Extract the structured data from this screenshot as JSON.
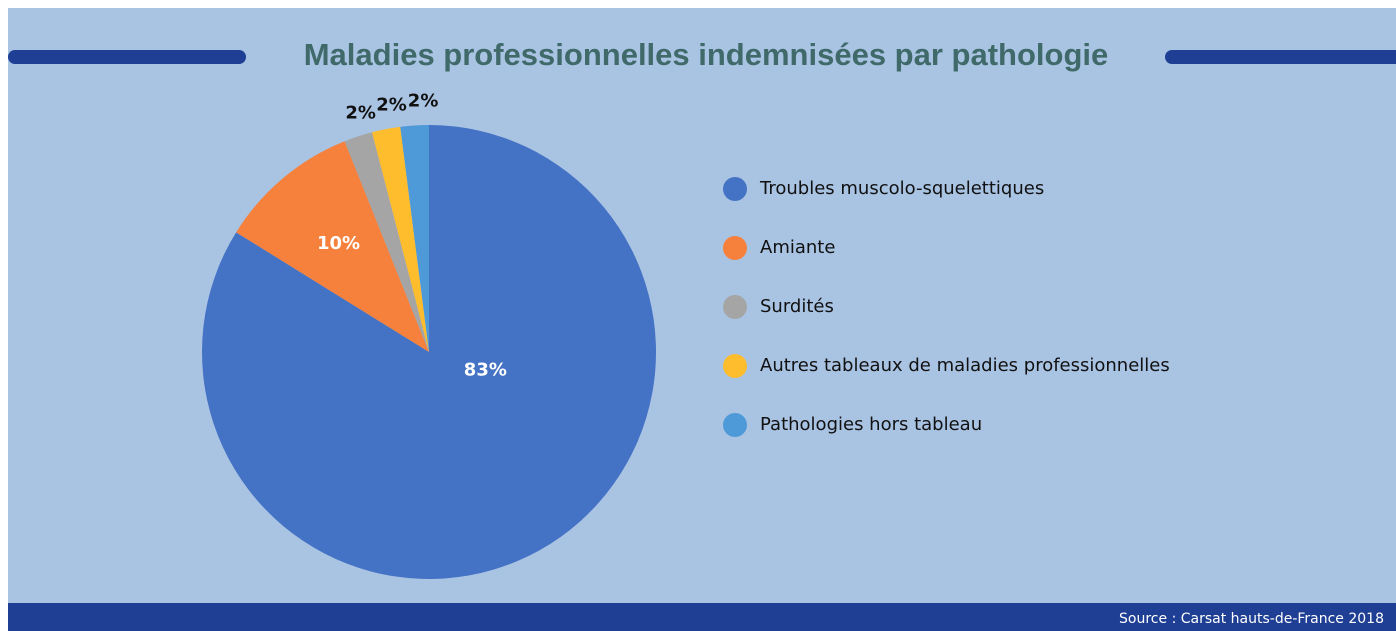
{
  "chart_data": {
    "type": "pie",
    "title": "Maladies professionnelles indemnisées par pathologie",
    "categories": [
      "Troubles muscolo-squelettiques",
      "Amiante",
      "Surdités",
      "Autres tableaux de maladies professionnelles",
      "Pathologies hors tableau"
    ],
    "values": [
      83,
      10,
      2,
      2,
      2
    ],
    "value_labels": [
      "83%",
      "10%",
      "2%",
      "2%",
      "2%"
    ],
    "colors": [
      "#4472c4",
      "#f5813c",
      "#a5a5a5",
      "#fdbd2c",
      "#4e9ad9"
    ],
    "legend": "right",
    "source": "Source : Carsat hauts-de-France 2018"
  }
}
